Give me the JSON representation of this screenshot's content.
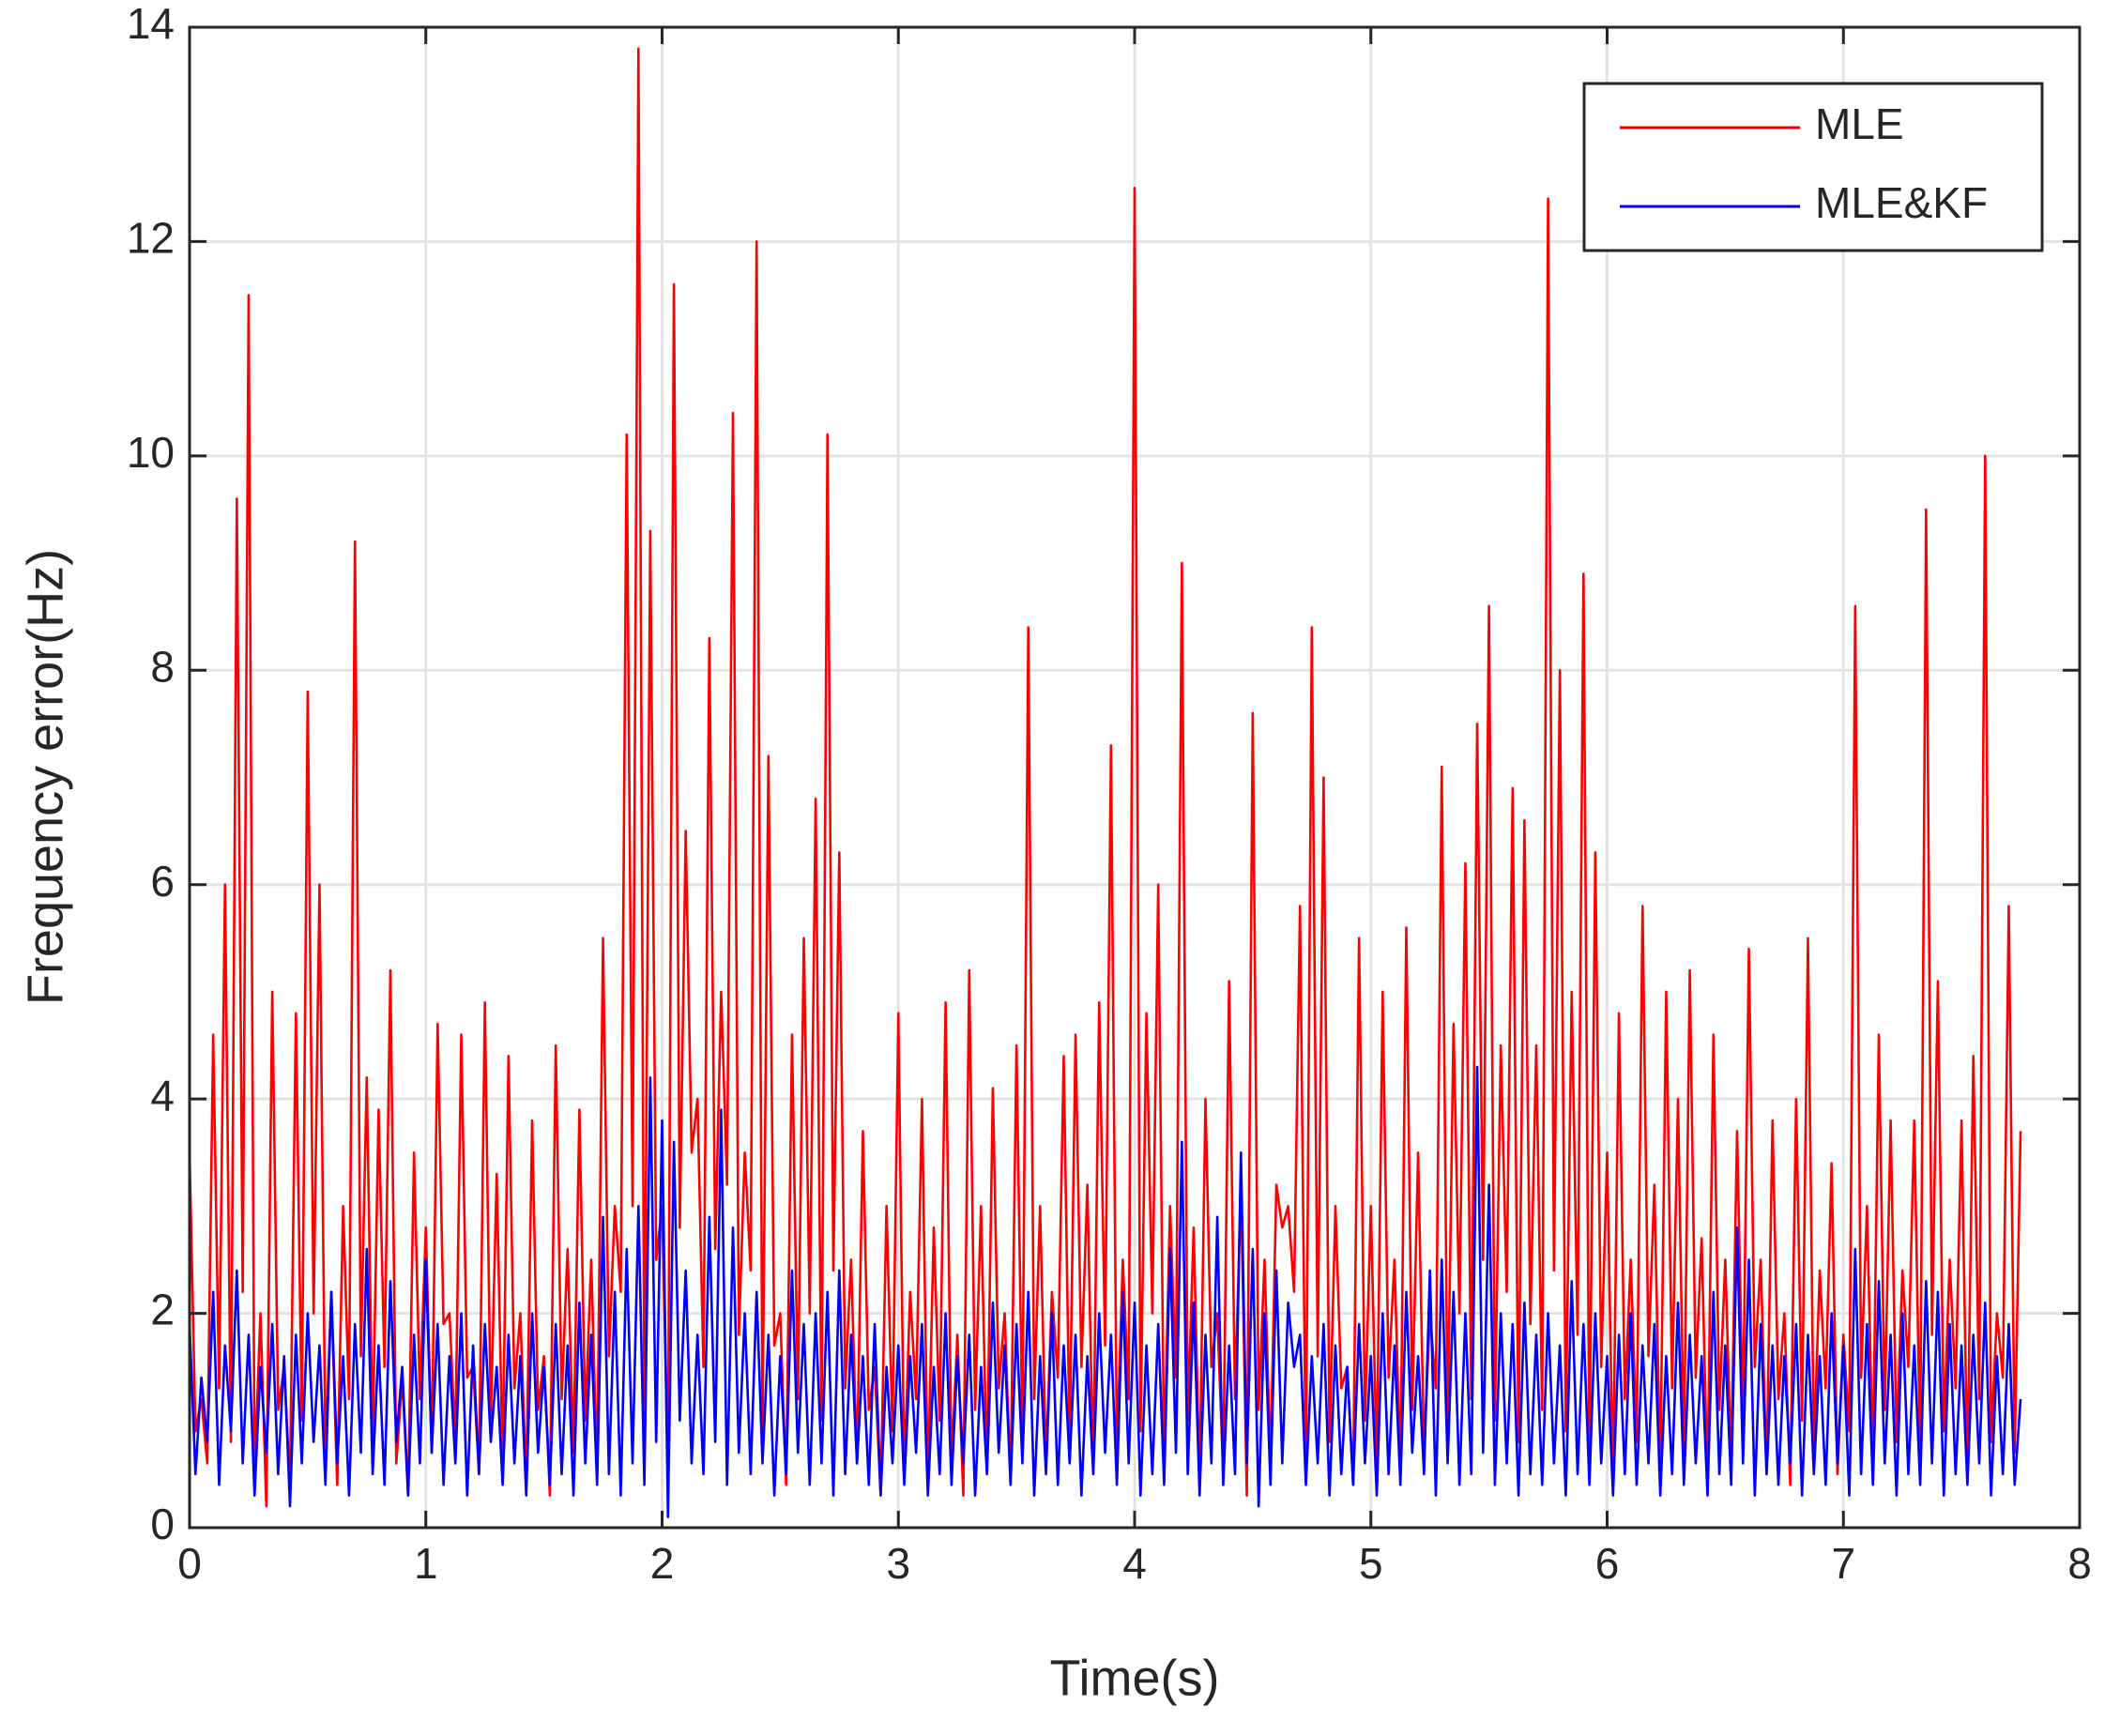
{
  "chart_data": {
    "type": "line",
    "xlabel": "Time(s)",
    "ylabel": "Frequency error(Hz)",
    "xlim": [
      0,
      8
    ],
    "ylim": [
      0,
      14
    ],
    "xticks": [
      0,
      1,
      2,
      3,
      4,
      5,
      6,
      7,
      8
    ],
    "yticks": [
      0,
      2,
      4,
      6,
      8,
      10,
      12,
      14
    ],
    "grid": true,
    "legend": "upper right",
    "x": [
      0,
      0.025,
      0.05,
      0.075,
      0.1,
      0.125,
      0.15,
      0.175,
      0.2,
      0.225,
      0.25,
      0.275,
      0.3,
      0.325,
      0.35,
      0.375,
      0.4,
      0.425,
      0.45,
      0.475,
      0.5,
      0.525,
      0.55,
      0.575,
      0.6,
      0.625,
      0.65,
      0.675,
      0.7,
      0.725,
      0.75,
      0.775,
      0.8,
      0.825,
      0.85,
      0.875,
      0.9,
      0.925,
      0.95,
      0.975,
      1,
      1.025,
      1.05,
      1.075,
      1.1,
      1.125,
      1.15,
      1.175,
      1.2,
      1.225,
      1.25,
      1.275,
      1.3,
      1.325,
      1.35,
      1.375,
      1.4,
      1.425,
      1.45,
      1.475,
      1.5,
      1.525,
      1.55,
      1.575,
      1.6,
      1.625,
      1.65,
      1.675,
      1.7,
      1.725,
      1.75,
      1.775,
      1.8,
      1.825,
      1.85,
      1.875,
      1.9,
      1.925,
      1.95,
      1.975,
      2,
      2.025,
      2.05,
      2.075,
      2.1,
      2.125,
      2.15,
      2.175,
      2.2,
      2.225,
      2.25,
      2.275,
      2.3,
      2.325,
      2.35,
      2.375,
      2.4,
      2.425,
      2.45,
      2.475,
      2.5,
      2.525,
      2.55,
      2.575,
      2.6,
      2.625,
      2.65,
      2.675,
      2.7,
      2.725,
      2.75,
      2.775,
      2.8,
      2.825,
      2.85,
      2.875,
      2.9,
      2.925,
      2.95,
      2.975,
      3,
      3.025,
      3.05,
      3.075,
      3.1,
      3.125,
      3.15,
      3.175,
      3.2,
      3.225,
      3.25,
      3.275,
      3.3,
      3.325,
      3.35,
      3.375,
      3.4,
      3.425,
      3.45,
      3.475,
      3.5,
      3.525,
      3.55,
      3.575,
      3.6,
      3.625,
      3.65,
      3.675,
      3.7,
      3.725,
      3.75,
      3.775,
      3.8,
      3.825,
      3.85,
      3.875,
      3.9,
      3.925,
      3.95,
      3.975,
      4,
      4.025,
      4.05,
      4.075,
      4.1,
      4.125,
      4.15,
      4.175,
      4.2,
      4.225,
      4.25,
      4.275,
      4.3,
      4.325,
      4.35,
      4.375,
      4.4,
      4.425,
      4.45,
      4.475,
      4.5,
      4.525,
      4.55,
      4.575,
      4.6,
      4.625,
      4.65,
      4.675,
      4.7,
      4.725,
      4.75,
      4.775,
      4.8,
      4.825,
      4.85,
      4.875,
      4.9,
      4.925,
      4.95,
      4.975,
      5,
      5.025,
      5.05,
      5.075,
      5.1,
      5.125,
      5.15,
      5.175,
      5.2,
      5.225,
      5.25,
      5.275,
      5.3,
      5.325,
      5.35,
      5.375,
      5.4,
      5.425,
      5.45,
      5.475,
      5.5,
      5.525,
      5.55,
      5.575,
      5.6,
      5.625,
      5.65,
      5.675,
      5.7,
      5.725,
      5.75,
      5.775,
      5.8,
      5.825,
      5.85,
      5.875,
      5.9,
      5.925,
      5.95,
      5.975,
      6,
      6.025,
      6.05,
      6.075,
      6.1,
      6.125,
      6.15,
      6.175,
      6.2,
      6.225,
      6.25,
      6.275,
      6.3,
      6.325,
      6.35,
      6.375,
      6.4,
      6.425,
      6.45,
      6.475,
      6.5,
      6.525,
      6.55,
      6.575,
      6.6,
      6.625,
      6.65,
      6.675,
      6.7,
      6.725,
      6.75,
      6.775,
      6.8,
      6.825,
      6.85,
      6.875,
      6.9,
      6.925,
      6.95,
      6.975,
      7,
      7.025,
      7.05,
      7.075,
      7.1,
      7.125,
      7.15,
      7.175,
      7.2,
      7.225,
      7.25,
      7.275,
      7.3,
      7.325,
      7.35,
      7.375,
      7.4,
      7.425,
      7.45,
      7.475,
      7.5,
      7.525,
      7.55,
      7.575,
      7.6,
      7.625,
      7.65,
      7.675,
      7.7,
      7.725,
      7.75
    ],
    "series": [
      {
        "name": "MLE",
        "color": "#ff0000",
        "values": [
          3.5,
          0.9,
          1.2,
          0.6,
          4.6,
          1.3,
          6.0,
          0.8,
          9.6,
          2.2,
          11.5,
          0.5,
          2.0,
          0.2,
          5.0,
          1.1,
          1.5,
          0.4,
          4.8,
          1.0,
          7.8,
          2.0,
          6.0,
          0.7,
          2.2,
          0.4,
          3.0,
          1.2,
          9.2,
          1.6,
          4.2,
          0.8,
          3.9,
          1.5,
          5.2,
          0.6,
          1.4,
          0.3,
          3.5,
          1.2,
          2.8,
          0.7,
          4.7,
          1.9,
          2.0,
          0.8,
          4.6,
          1.4,
          1.5,
          0.5,
          4.9,
          1.0,
          3.3,
          0.6,
          4.4,
          1.3,
          2.0,
          0.4,
          3.8,
          1.1,
          1.6,
          0.3,
          4.5,
          1.2,
          2.6,
          0.7,
          3.9,
          1.0,
          2.5,
          0.5,
          5.5,
          1.6,
          3.0,
          2.2,
          10.2,
          3.0,
          13.8,
          1.0,
          9.3,
          2.5,
          3.0,
          0.5,
          11.6,
          2.8,
          6.5,
          3.5,
          4.0,
          1.5,
          8.3,
          2.6,
          5.0,
          3.2,
          10.4,
          1.8,
          3.5,
          2.4,
          12.0,
          0.9,
          7.2,
          1.7,
          2.0,
          0.4,
          4.6,
          1.2,
          5.5,
          2.0,
          6.8,
          1.0,
          10.2,
          2.4,
          6.3,
          1.3,
          2.5,
          0.6,
          3.7,
          1.1,
          1.5,
          0.3,
          3.0,
          0.9,
          4.8,
          0.5,
          2.2,
          1.2,
          4.0,
          0.4,
          2.8,
          1.0,
          4.9,
          0.6,
          1.8,
          0.3,
          5.2,
          1.1,
          3.0,
          0.5,
          4.1,
          1.3,
          2.0,
          0.4,
          4.5,
          0.9,
          8.4,
          1.2,
          3.0,
          0.6,
          2.2,
          1.4,
          4.4,
          0.8,
          4.6,
          1.5,
          3.2,
          0.5,
          4.9,
          1.7,
          7.3,
          0.7,
          2.5,
          1.2,
          12.5,
          0.9,
          4.8,
          2.0,
          6.0,
          0.6,
          3.0,
          1.4,
          9.0,
          1.0,
          2.8,
          0.4,
          4.0,
          1.5,
          2.0,
          0.5,
          5.1,
          1.2,
          3.2,
          0.3,
          7.6,
          1.1,
          2.5,
          0.6,
          3.2,
          2.8,
          3.0,
          2.2,
          5.8,
          0.5,
          8.4,
          1.6,
          7.0,
          0.8,
          3.0,
          1.3,
          1.5,
          0.4,
          5.5,
          1.0,
          3.0,
          0.6,
          5.0,
          1.4,
          2.5,
          0.5,
          5.6,
          1.1,
          3.5,
          0.7,
          2.0,
          1.3,
          7.1,
          0.9,
          4.7,
          2.0,
          6.2,
          1.2,
          7.5,
          2.5,
          8.6,
          1.0,
          4.5,
          2.2,
          6.9,
          0.8,
          6.6,
          1.9,
          4.5,
          1.1,
          12.4,
          2.4,
          8.0,
          0.9,
          5.0,
          1.8,
          8.9,
          0.6,
          6.3,
          1.5,
          3.5,
          0.4,
          4.8,
          1.2,
          2.5,
          0.8,
          5.8,
          1.6,
          3.2,
          0.5,
          5.0,
          1.3,
          4.0,
          0.7,
          5.2,
          1.4,
          2.7,
          0.4,
          4.6,
          1.1,
          2.5,
          0.6,
          3.7,
          1.0,
          5.4,
          1.5,
          2.5,
          0.5,
          3.8,
          1.2,
          2.0,
          0.4,
          4.0,
          1.0,
          5.5,
          0.7,
          2.4,
          1.3,
          3.4,
          0.5,
          1.8,
          0.9,
          8.6,
          1.4,
          3.0,
          0.6,
          4.6,
          1.1,
          3.8,
          0.8,
          2.4,
          1.5,
          3.8,
          0.7,
          9.5,
          1.8,
          5.1,
          0.9,
          2.5,
          1.3,
          3.8,
          0.5,
          4.4,
          1.2,
          10.0,
          0.8,
          2.0,
          1.4,
          5.8,
          0.7,
          3.7
        ]
      },
      {
        "name": "MLE&KF",
        "color": "#0000ff",
        "values": [
          1.9,
          0.5,
          1.4,
          0.8,
          2.2,
          0.4,
          1.7,
          0.9,
          2.4,
          0.6,
          1.8,
          0.3,
          1.5,
          0.7,
          1.9,
          0.5,
          1.6,
          0.2,
          1.8,
          0.6,
          2.0,
          0.8,
          1.7,
          0.4,
          2.2,
          0.6,
          1.6,
          0.3,
          1.9,
          0.7,
          2.6,
          0.5,
          1.7,
          0.4,
          2.3,
          0.8,
          1.5,
          0.3,
          1.8,
          0.6,
          2.5,
          0.7,
          1.9,
          0.4,
          1.6,
          0.6,
          2.0,
          0.3,
          1.7,
          0.5,
          1.9,
          0.8,
          1.5,
          0.4,
          1.8,
          0.6,
          1.6,
          0.3,
          2.0,
          0.7,
          1.5,
          0.4,
          1.9,
          0.5,
          1.7,
          0.3,
          2.1,
          0.6,
          1.8,
          0.4,
          2.9,
          0.5,
          2.2,
          0.3,
          2.6,
          0.6,
          3.0,
          0.4,
          4.2,
          0.8,
          3.8,
          0.1,
          3.6,
          1.0,
          2.4,
          0.6,
          1.8,
          0.5,
          2.9,
          0.8,
          3.9,
          0.4,
          2.8,
          0.7,
          2.0,
          0.5,
          2.2,
          0.6,
          1.8,
          0.3,
          1.6,
          0.5,
          2.4,
          0.7,
          1.9,
          0.4,
          2.0,
          0.6,
          2.2,
          0.3,
          2.4,
          0.5,
          1.8,
          0.6,
          1.6,
          0.4,
          1.9,
          0.3,
          1.5,
          0.6,
          1.7,
          0.4,
          1.6,
          0.7,
          1.9,
          0.3,
          1.5,
          0.5,
          2.0,
          0.4,
          1.6,
          0.6,
          1.8,
          0.3,
          1.5,
          0.5,
          2.1,
          0.7,
          1.7,
          0.4,
          1.9,
          0.6,
          2.2,
          0.3,
          1.6,
          0.5,
          2.0,
          0.4,
          1.7,
          0.6,
          1.8,
          0.3,
          1.6,
          0.5,
          2.0,
          0.7,
          1.8,
          0.4,
          2.2,
          0.6,
          2.1,
          0.3,
          1.7,
          0.5,
          1.9,
          0.4,
          2.6,
          0.7,
          3.6,
          0.5,
          2.1,
          0.3,
          1.8,
          0.6,
          2.9,
          0.4,
          1.7,
          0.5,
          3.5,
          0.6,
          2.6,
          0.2,
          2.0,
          0.4,
          2.4,
          0.6,
          2.1,
          1.5,
          1.8,
          0.4,
          1.6,
          0.6,
          1.9,
          0.3,
          1.7,
          0.5,
          1.5,
          0.4,
          1.9,
          0.6,
          1.6,
          0.3,
          2.0,
          0.5,
          1.7,
          0.4,
          2.2,
          0.7,
          1.6,
          0.5,
          2.4,
          0.3,
          2.5,
          0.6,
          2.2,
          0.4,
          2.0,
          0.5,
          4.3,
          0.7,
          3.2,
          0.4,
          2.0,
          0.6,
          1.9,
          0.3,
          2.1,
          0.5,
          1.8,
          0.4,
          2.0,
          0.6,
          1.7,
          0.3,
          2.3,
          0.5,
          1.9,
          0.4,
          2.0,
          0.6,
          1.6,
          0.3,
          1.8,
          0.5,
          2.0,
          0.4,
          1.7,
          0.6,
          1.9,
          0.3,
          1.6,
          0.5,
          2.1,
          0.4,
          1.8,
          0.6,
          1.6,
          0.3,
          2.2,
          0.5,
          1.7,
          0.4,
          2.8,
          0.6,
          2.5,
          0.3,
          1.9,
          0.5,
          1.7,
          0.4,
          1.6,
          0.6,
          1.9,
          0.3,
          1.8,
          0.5,
          1.6,
          0.4,
          2.0,
          0.6,
          1.7,
          0.3,
          2.6,
          0.5,
          1.9,
          0.4,
          2.3,
          0.6,
          1.8,
          0.3,
          2.0,
          0.5,
          1.7,
          0.4,
          2.3,
          0.6,
          2.2,
          0.3,
          1.9,
          0.5,
          1.7,
          0.4,
          1.8,
          0.6,
          2.1,
          0.3,
          1.6,
          0.5,
          1.9,
          0.4,
          1.2
        ]
      }
    ]
  }
}
